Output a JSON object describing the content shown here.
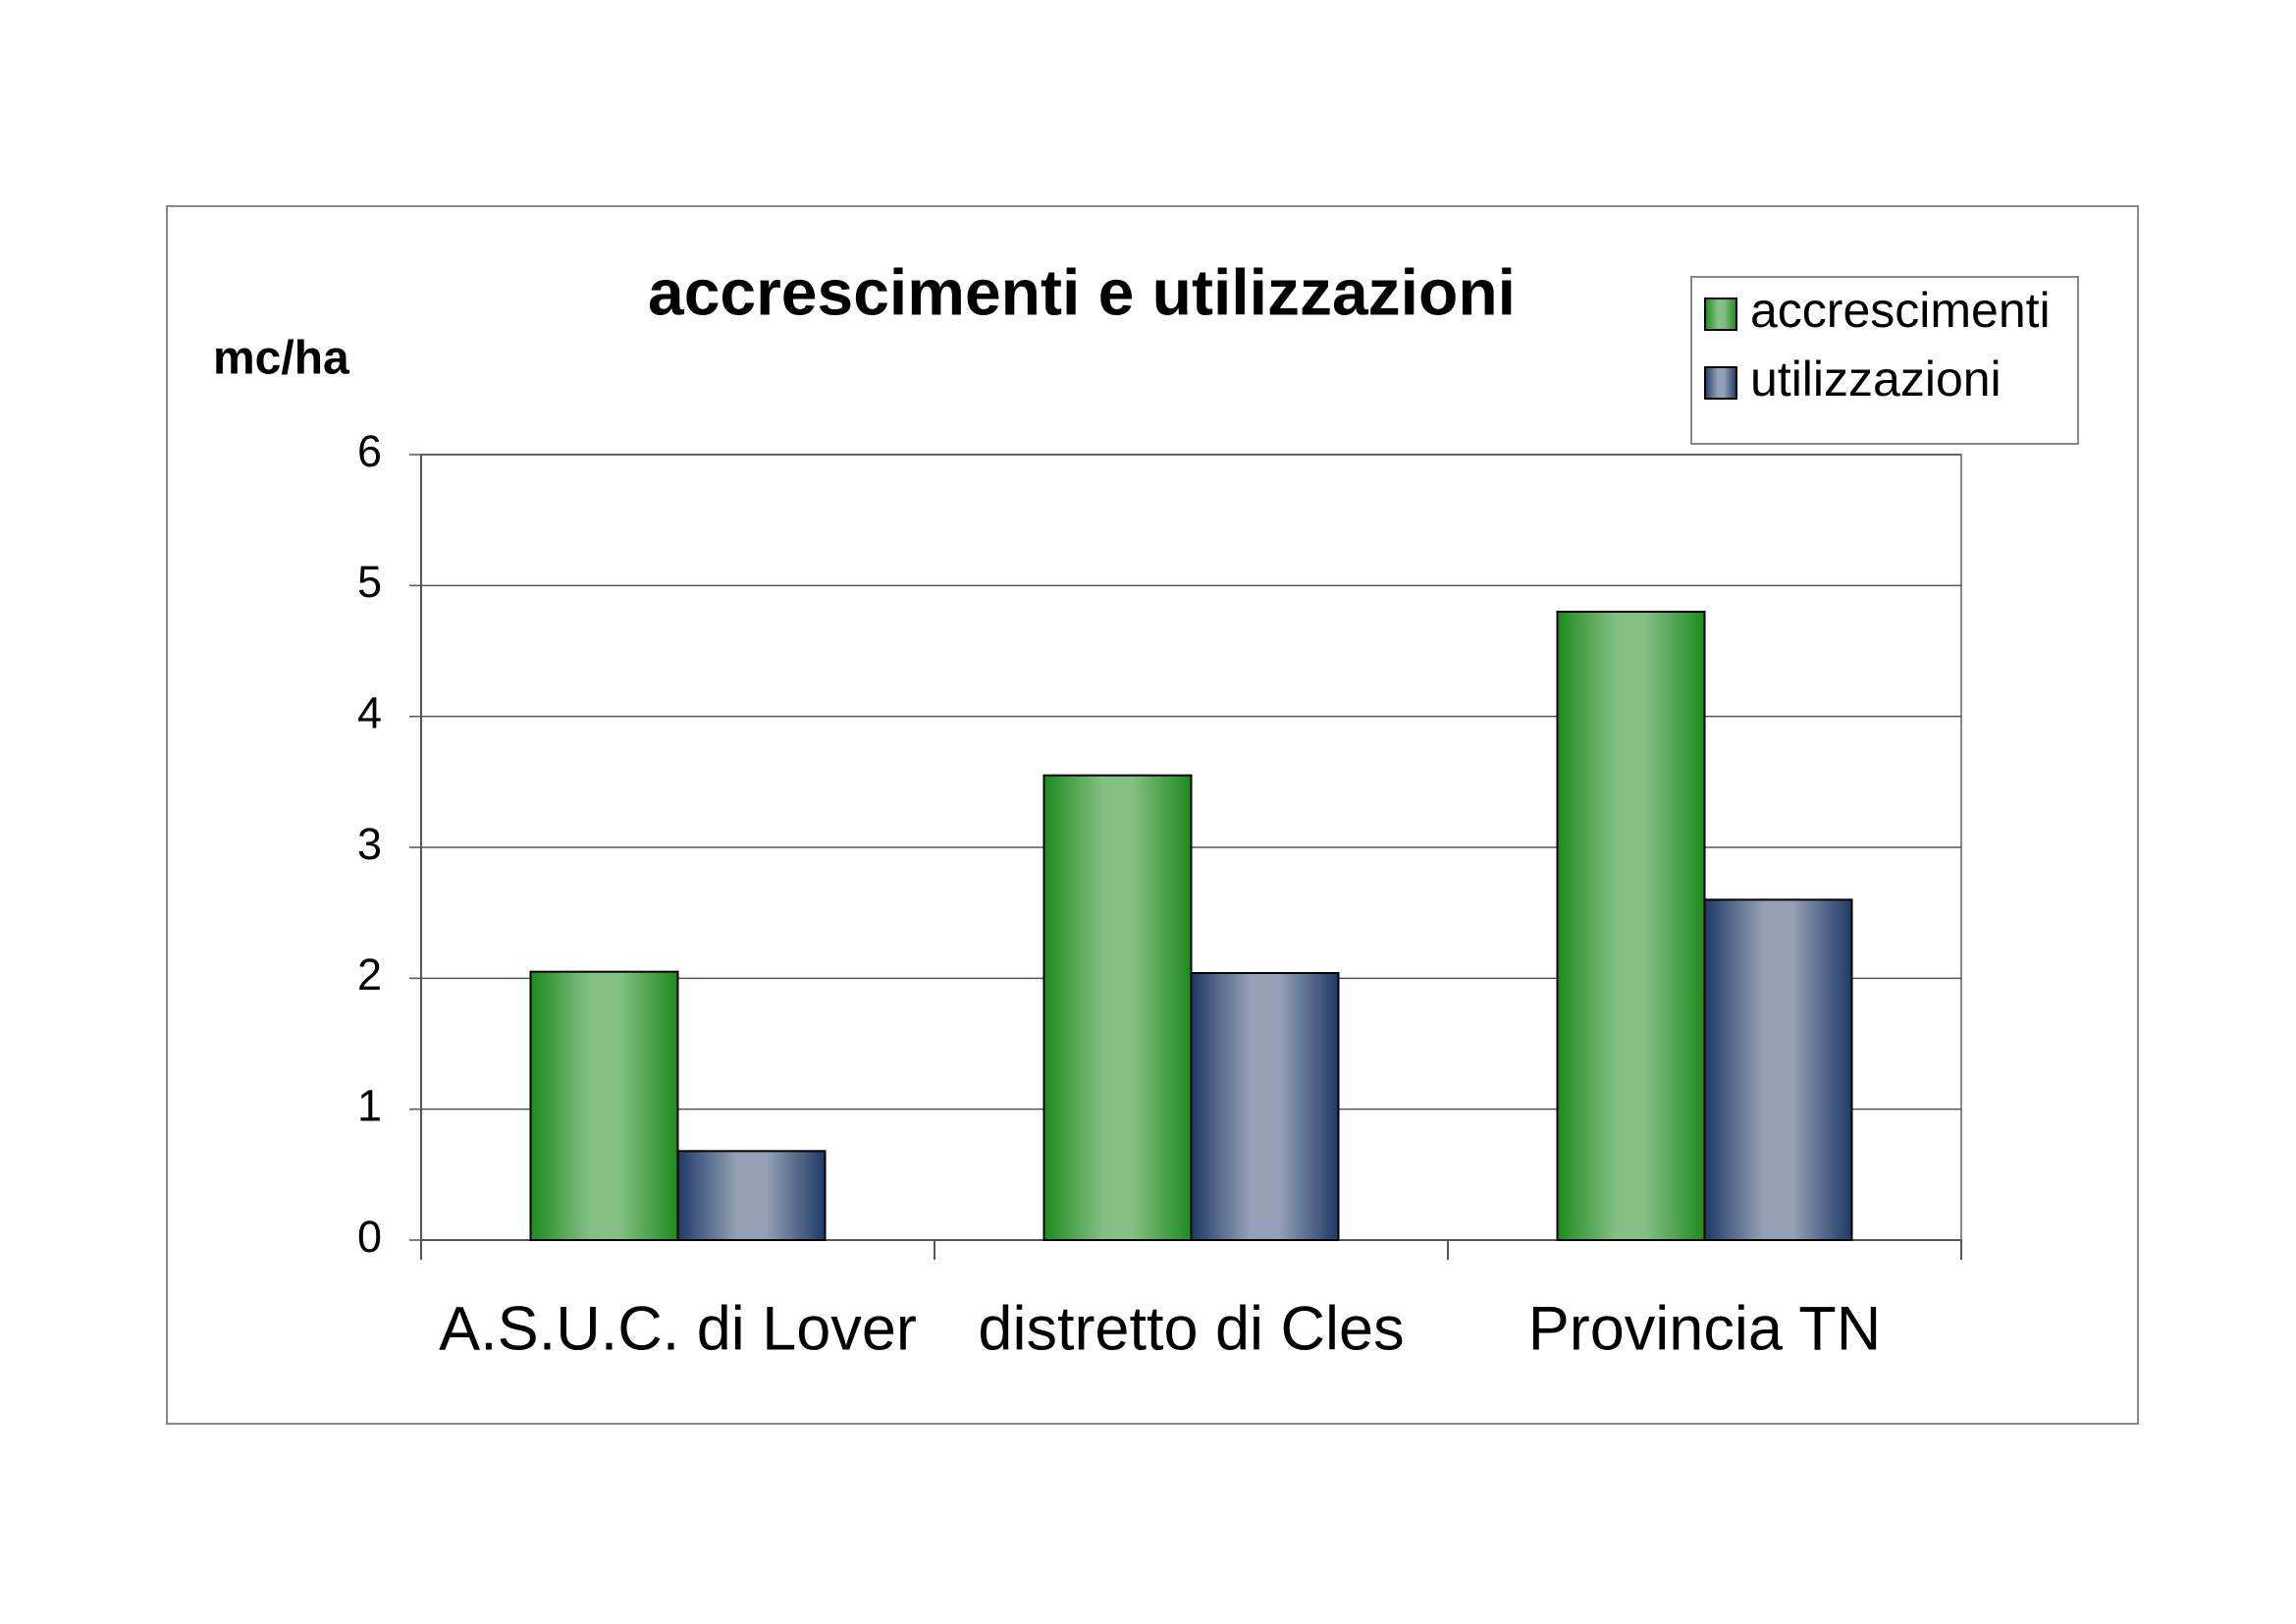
{
  "chart_data": {
    "type": "bar",
    "title": "accrescimenti e utilizzazioni",
    "y_label": "mc/ha",
    "categories": [
      "A.S.U.C. di Lover",
      "distretto di Cles",
      "Provincia TN"
    ],
    "series": [
      {
        "name": "accrescimenti",
        "color": "#1f8a1f",
        "values": [
          2.05,
          3.55,
          4.8
        ]
      },
      {
        "name": "utilizzazioni",
        "color": "#1f3a66",
        "values": [
          0.68,
          2.04,
          2.6
        ]
      }
    ],
    "ylim": [
      0,
      6
    ],
    "yticks": [
      0,
      1,
      2,
      3,
      4,
      5,
      6
    ],
    "grid": true,
    "legend": "top-right"
  }
}
